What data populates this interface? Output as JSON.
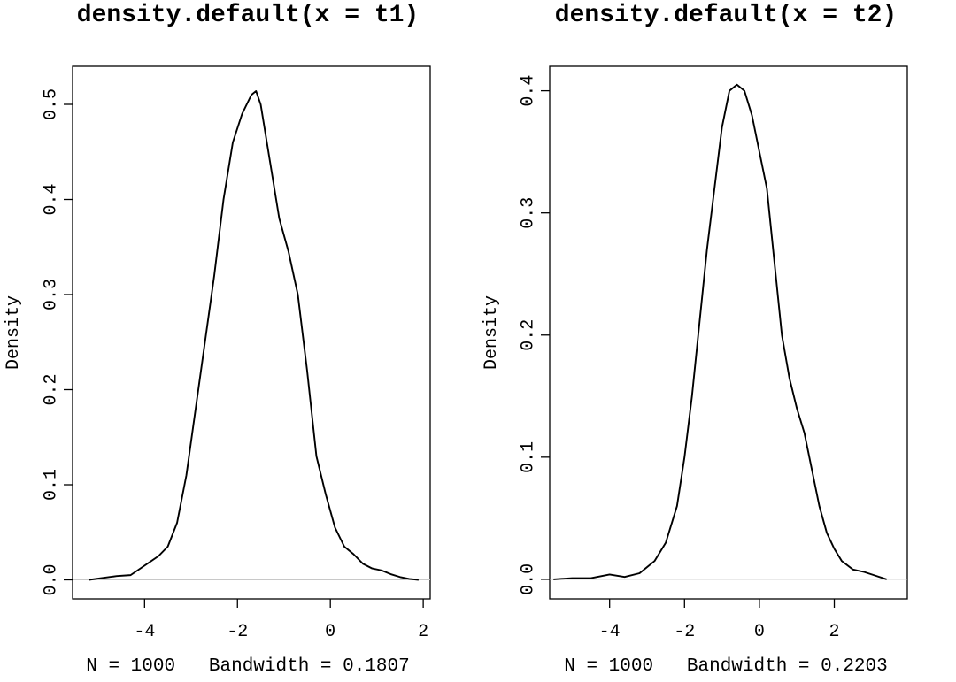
{
  "chart_data": [
    {
      "type": "line",
      "title": "density.default(x = t1)",
      "xlabel": "N = 1000   Bandwidth = 0.1807",
      "ylabel": "Density",
      "xlim": [
        -5.55,
        2.15
      ],
      "ylim": [
        -0.02,
        0.54
      ],
      "xticks": [
        -4,
        -2,
        0,
        2
      ],
      "yticks": [
        0.0,
        0.1,
        0.2,
        0.3,
        0.4,
        0.5
      ],
      "xtick_labels": [
        "-4",
        "-2",
        "0",
        "2"
      ],
      "ytick_labels": [
        "0.0",
        "0.1",
        "0.2",
        "0.3",
        "0.4",
        "0.5"
      ],
      "zero_line": true,
      "grid": false,
      "x": [
        -5.2,
        -4.9,
        -4.6,
        -4.3,
        -4.0,
        -3.7,
        -3.5,
        -3.3,
        -3.1,
        -2.9,
        -2.7,
        -2.5,
        -2.3,
        -2.1,
        -1.9,
        -1.7,
        -1.6,
        -1.5,
        -1.3,
        -1.1,
        -0.9,
        -0.7,
        -0.5,
        -0.3,
        -0.1,
        0.1,
        0.3,
        0.5,
        0.7,
        0.9,
        1.1,
        1.3,
        1.5,
        1.7,
        1.9
      ],
      "y": [
        0.0,
        0.002,
        0.004,
        0.005,
        0.015,
        0.025,
        0.035,
        0.06,
        0.11,
        0.18,
        0.25,
        0.32,
        0.4,
        0.46,
        0.49,
        0.51,
        0.514,
        0.5,
        0.44,
        0.38,
        0.345,
        0.3,
        0.22,
        0.13,
        0.09,
        0.055,
        0.035,
        0.027,
        0.017,
        0.012,
        0.01,
        0.006,
        0.003,
        0.001,
        0.0
      ]
    },
    {
      "type": "line",
      "title": "density.default(x = t2)",
      "xlabel": "N = 1000   Bandwidth = 0.2203",
      "ylabel": "Density",
      "xlim": [
        -5.6,
        3.95
      ],
      "ylim": [
        -0.016,
        0.42
      ],
      "xticks": [
        -4,
        -2,
        0,
        2
      ],
      "yticks": [
        0.0,
        0.1,
        0.2,
        0.3,
        0.4
      ],
      "xtick_labels": [
        "-4",
        "-2",
        "0",
        "2"
      ],
      "ytick_labels": [
        "0.0",
        "0.1",
        "0.2",
        "0.3",
        "0.4"
      ],
      "zero_line": true,
      "grid": false,
      "x": [
        -5.5,
        -5.0,
        -4.5,
        -4.0,
        -3.6,
        -3.2,
        -2.8,
        -2.5,
        -2.2,
        -2.0,
        -1.8,
        -1.6,
        -1.4,
        -1.2,
        -1.0,
        -0.8,
        -0.6,
        -0.4,
        -0.2,
        0.0,
        0.2,
        0.4,
        0.6,
        0.8,
        1.0,
        1.2,
        1.4,
        1.6,
        1.8,
        2.0,
        2.2,
        2.5,
        2.8,
        3.1,
        3.4
      ],
      "y": [
        0.0,
        0.001,
        0.001,
        0.004,
        0.002,
        0.005,
        0.015,
        0.03,
        0.06,
        0.1,
        0.15,
        0.21,
        0.27,
        0.32,
        0.37,
        0.4,
        0.405,
        0.4,
        0.38,
        0.35,
        0.32,
        0.26,
        0.2,
        0.165,
        0.14,
        0.12,
        0.09,
        0.06,
        0.038,
        0.025,
        0.015,
        0.008,
        0.006,
        0.003,
        0.0
      ]
    }
  ]
}
